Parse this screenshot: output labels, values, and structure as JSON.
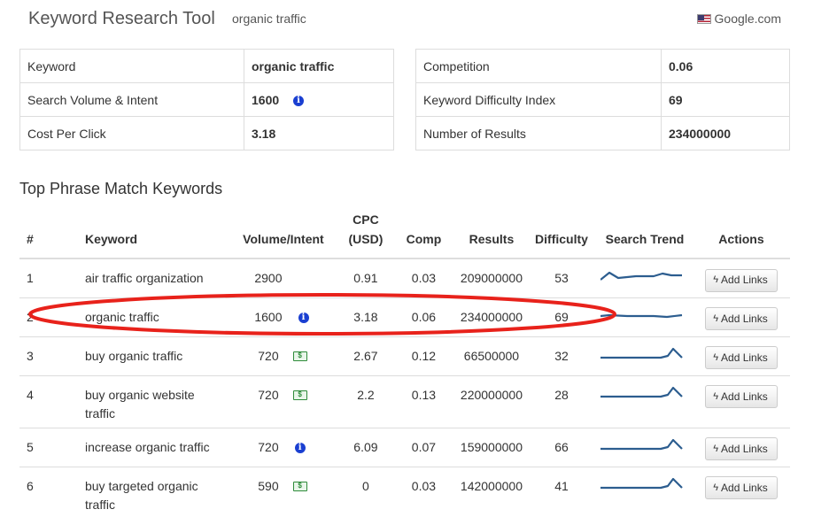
{
  "header": {
    "title": "Keyword Research Tool",
    "subtitle": "organic traffic",
    "engine": "Google.com",
    "flag_icon": "us-flag-icon"
  },
  "info_left": [
    {
      "label": "Keyword",
      "value": "organic traffic"
    },
    {
      "label": "Search Volume & Intent",
      "value": "1600",
      "icon": "info-icon"
    },
    {
      "label": "Cost Per Click",
      "value": "3.18"
    }
  ],
  "info_right": [
    {
      "label": "Competition",
      "value": "0.06"
    },
    {
      "label": "Keyword Difficulty Index",
      "value": "69"
    },
    {
      "label": "Number of Results",
      "value": "234000000"
    }
  ],
  "section_title": "Top Phrase Match Keywords",
  "table": {
    "headers": {
      "num": "#",
      "keyword": "Keyword",
      "volume": "Volume/Intent",
      "cpc_line1": "CPC",
      "cpc_line2": "(USD)",
      "comp": "Comp",
      "results": "Results",
      "difficulty": "Difficulty",
      "trend": "Search Trend",
      "actions": "Actions"
    },
    "button_label": "Add Links",
    "rows": [
      {
        "num": "1",
        "keyword": "air traffic organization",
        "volume": "2900",
        "intent": "",
        "cpc": "0.91",
        "comp": "0.03",
        "results": "209000000",
        "difficulty": "53"
      },
      {
        "num": "2",
        "keyword": "organic traffic",
        "volume": "1600",
        "intent": "info",
        "cpc": "3.18",
        "comp": "0.06",
        "results": "234000000",
        "difficulty": "69"
      },
      {
        "num": "3",
        "keyword": "buy organic traffic",
        "volume": "720",
        "intent": "money",
        "cpc": "2.67",
        "comp": "0.12",
        "results": "66500000",
        "difficulty": "32"
      },
      {
        "num": "4",
        "keyword": "buy organic website traffic",
        "volume": "720",
        "intent": "money",
        "cpc": "2.2",
        "comp": "0.13",
        "results": "220000000",
        "difficulty": "28"
      },
      {
        "num": "5",
        "keyword": "increase organic traffic",
        "volume": "720",
        "intent": "info",
        "cpc": "6.09",
        "comp": "0.07",
        "results": "159000000",
        "difficulty": "66"
      },
      {
        "num": "6",
        "keyword": "buy targeted organic traffic",
        "volume": "590",
        "intent": "money",
        "cpc": "0",
        "comp": "0.03",
        "results": "142000000",
        "difficulty": "41"
      }
    ]
  },
  "colors": {
    "highlight": "#e8221b",
    "trend_line": "#2c5d8f",
    "info_icon": "#1a3fd1",
    "money_icon": "#2e8b3a"
  }
}
